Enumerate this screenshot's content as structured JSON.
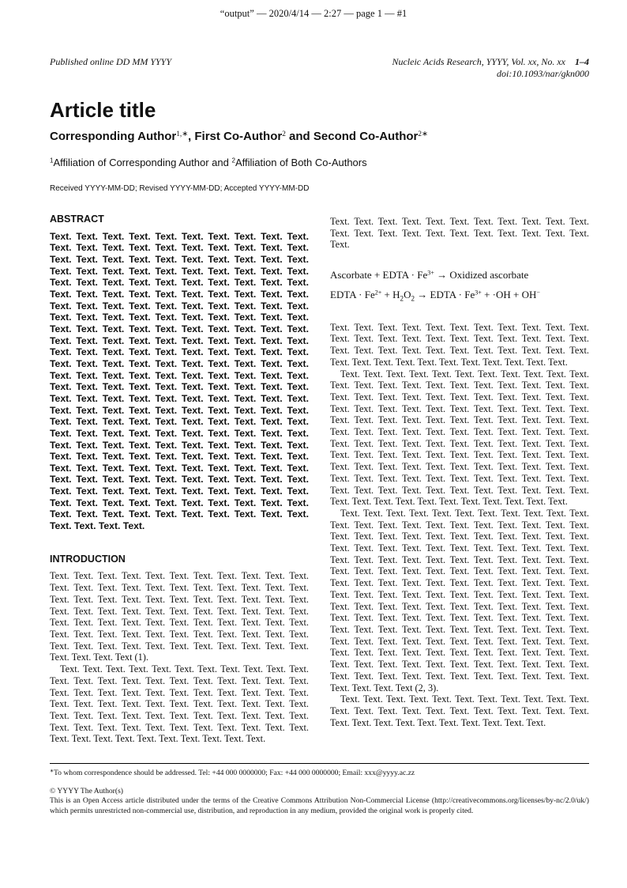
{
  "running_header": "“output” — 2020/4/14 — 2:27 — page 1 — #1",
  "published": "Published online DD MM YYYY",
  "journal": "Nucleic Acids Research, YYYY, Vol. xx, No. xx",
  "pages": "1–4",
  "doi": "doi:10.1093/nar/gkn000",
  "title": "Article title",
  "authors": [
    {
      "name": "Corresponding Author",
      "sup": "1,∗"
    },
    {
      "sep": ", ",
      "name": "First Co-Author",
      "sup": "2"
    },
    {
      "sep": " and ",
      "name": "Second Co-Author",
      "sup": "2∗"
    }
  ],
  "affiliations": {
    "sup1": "1",
    "a1": "Affiliation of Corresponding Author and ",
    "sup2": "2",
    "a2": "Affiliation of Both Co-Authors"
  },
  "dates": "Received YYYY-MM-DD; Revised YYYY-MM-DD; Accepted YYYY-MM-DD",
  "abstract": {
    "heading": "ABSTRACT",
    "text": "Text. Text. Text. Text. Text. Text. Text. Text. Text. Text. Text. Text. Text. Text. Text. Text. Text. Text. Text. Text. Text. Text. Text. Text. Text. Text. Text. Text. Text. Text. Text. Text. Text. Text. Text. Text. Text. Text. Text. Text. Text. Text. Text. Text. Text. Text. Text. Text. Text. Text. Text. Text. Text. Text. Text. Text. Text. Text. Text. Text. Text. Text. Text. Text. Text. Text. Text. Text. Text. Text. Text. Text. Text. Text. Text. Text. Text. Text. Text. Text. Text. Text. Text. Text. Text. Text. Text. Text. Text. Text. Text. Text. Text. Text. Text. Text. Text. Text. Text. Text. Text. Text. Text. Text. Text. Text. Text. Text. Text. Text. Text. Text. Text. Text. Text. Text. Text. Text. Text. Text. Text. Text. Text. Text. Text. Text. Text. Text. Text. Text. Text. Text. Text. Text. Text. Text. Text. Text. Text. Text. Text. Text. Text. Text. Text. Text. Text. Text. Text. Text. Text. Text. Text. Text. Text. Text. Text. Text. Text. Text. Text. Text. Text. Text. Text. Text. Text. Text. Text. Text. Text. Text. Text. Text. Text. Text. Text. Text. Text. Text. Text. Text. Text. Text. Text. Text. Text. Text. Text. Text. Text. Text. Text. Text. Text. Text. Text. Text. Text. Text. Text. Text. Text. Text. Text. Text. Text. Text. Text. Text. Text. Text. Text. Text. Text. Text. Text. Text. Text. Text. Text. Text. Text. Text. Text. Text. Text. Text. Text. Text. Text. Text. Text. Text. Text. Text. Text. Text. Text. Text. Text. Text. Text. Text. Text. Text. Text. Text. Text. Text. Text. Text. Text. Text."
  },
  "introduction": {
    "heading": "INTRODUCTION",
    "p1": "Text. Text. Text. Text. Text. Text. Text. Text. Text. Text. Text. Text. Text. Text. Text. Text. Text. Text. Text. Text. Text. Text. Text. Text. Text. Text. Text. Text. Text. Text. Text. Text. Text. Text. Text. Text. Text. Text. Text. Text. Text. Text. Text. Text. Text. Text. Text. Text. Text. Text. Text. Text. Text. Text. Text. Text. Text. Text. Text. Text. Text. Text. Text. Text. Text. Text. Text. Text. Text. Text. Text. Text. Text. Text. Text. Text. Text. Text. Text. Text. Text (1).",
    "p2a": "Text. Text. Text. Text. Text. Text. Text. Text. Text. Text. Text. Text. Text. Text. Text. Text. Text. Text. Text. Text. Text. Text. Text. Text. Text. Text. Text. Text. Text. Text. Text. Text. Text. Text. Text. Text. Text. Text. Text. Text. Text. Text. Text. Text. Text. Text. Text. Text. Text. Text. Text. Text. Text. Text. Text. Text. Text. Text. Text. Text. Text. Text. Text. Text. Text. Text. Text. Text. Text. Text. Text. Text. Text. Text. Text. Text.",
    "p2b": "Text. Text. Text. Text. Text. Text. Text. Text. Text. Text. Text. Text. Text. Text. Text. Text. Text. Text. Text. Text. Text. Text. Text.",
    "eq1": {
      "a": "Ascorbate + EDTA · Fe",
      "sup": "3+",
      "b": " → Oxidized ascorbate"
    },
    "eq2": {
      "a": "EDTA · Fe",
      "sup1": "2+",
      "b": " + H",
      "sub1": "2",
      "c": "O",
      "sub2": "2",
      "d": " → EDTA · Fe",
      "sup2": "3+",
      "e": " + ·OH + OH",
      "sup3": "−"
    },
    "p3": "Text. Text. Text. Text. Text. Text. Text. Text. Text. Text. Text. Text. Text. Text. Text. Text. Text. Text. Text. Text. Text. Text. Text. Text. Text. Text. Text. Text. Text. Text. Text. Text. Text. Text. Text. Text. Text. Text. Text. Text. Text. Text. Text. Text.",
    "p4": "Text. Text. Text. Text. Text. Text. Text. Text. Text. Text. Text. Text. Text. Text. Text. Text. Text. Text. Text. Text. Text. Text. Text. Text. Text. Text. Text. Text. Text. Text. Text. Text. Text. Text. Text. Text. Text. Text. Text. Text. Text. Text. Text. Text. Text. Text. Text. Text. Text. Text. Text. Text. Text. Text. Text. Text. Text. Text. Text. Text. Text. Text. Text. Text. Text. Text. Text. Text. Text. Text. Text. Text. Text. Text. Text. Text. Text. Text. Text. Text. Text. Text. Text. Text. Text. Text. Text. Text. Text. Text. Text. Text. Text. Text. Text. Text. Text. Text. Text. Text. Text. Text. Text. Text. Text. Text. Text. Text. Text. Text. Text. Text. Text. Text. Text. Text. Text. Text. Text. Text. Text. Text. Text. Text. Text. Text. Text. Text. Text. Text. Text. Text.",
    "p5": "Text. Text. Text. Text. Text. Text. Text. Text. Text. Text. Text. Text. Text. Text. Text. Text. Text. Text. Text. Text. Text. Text. Text. Text. Text. Text. Text. Text. Text. Text. Text. Text. Text. Text. Text. Text. Text. Text. Text. Text. Text. Text. Text. Text. Text. Text. Text. Text. Text. Text. Text. Text. Text. Text. Text. Text. Text. Text. Text. Text. Text. Text. Text. Text. Text. Text. Text. Text. Text. Text. Text. Text. Text. Text. Text. Text. Text. Text. Text. Text. Text. Text. Text. Text. Text. Text. Text. Text. Text. Text. Text. Text. Text. Text. Text. Text. Text. Text. Text. Text. Text. Text. Text. Text. Text. Text. Text. Text. Text. Text. Text. Text. Text. Text. Text. Text. Text. Text. Text. Text. Text. Text. Text. Text. Text. Text. Text. Text. Text. Text. Text. Text. Text. Text. Text. Text. Text. Text. Text. Text. Text. Text. Text. Text. Text. Text. Text. Text. Text. Text. Text. Text. Text. Text. Text. Text. Text. Text. Text. Text. Text. Text. Text. Text. Text. Text. Text. Text. Text (2, 3).",
    "p6": "Text. Text. Text. Text. Text. Text. Text. Text. Text. Text. Text. Text. Text. Text. Text. Text. Text. Text. Text. Text. Text. Text. Text. Text. Text. Text. Text. Text. Text. Text. Text. Text."
  },
  "footnotes": {
    "correspondence_mark": "∗",
    "correspondence": "To whom correspondence should be addressed. Tel: +44 000 0000000; Fax: +44 000 0000000; Email: xxx@yyyy.ac.zz",
    "copyright": "© YYYY The Author(s)",
    "license": "This is an Open Access article distributed under the terms of the Creative Commons Attribution Non-Commercial License (http://creativecommons.org/licenses/by-nc/2.0/uk/) which permits unrestricted non-commercial use, distribution, and reproduction in any medium, provided the original work is properly cited."
  }
}
